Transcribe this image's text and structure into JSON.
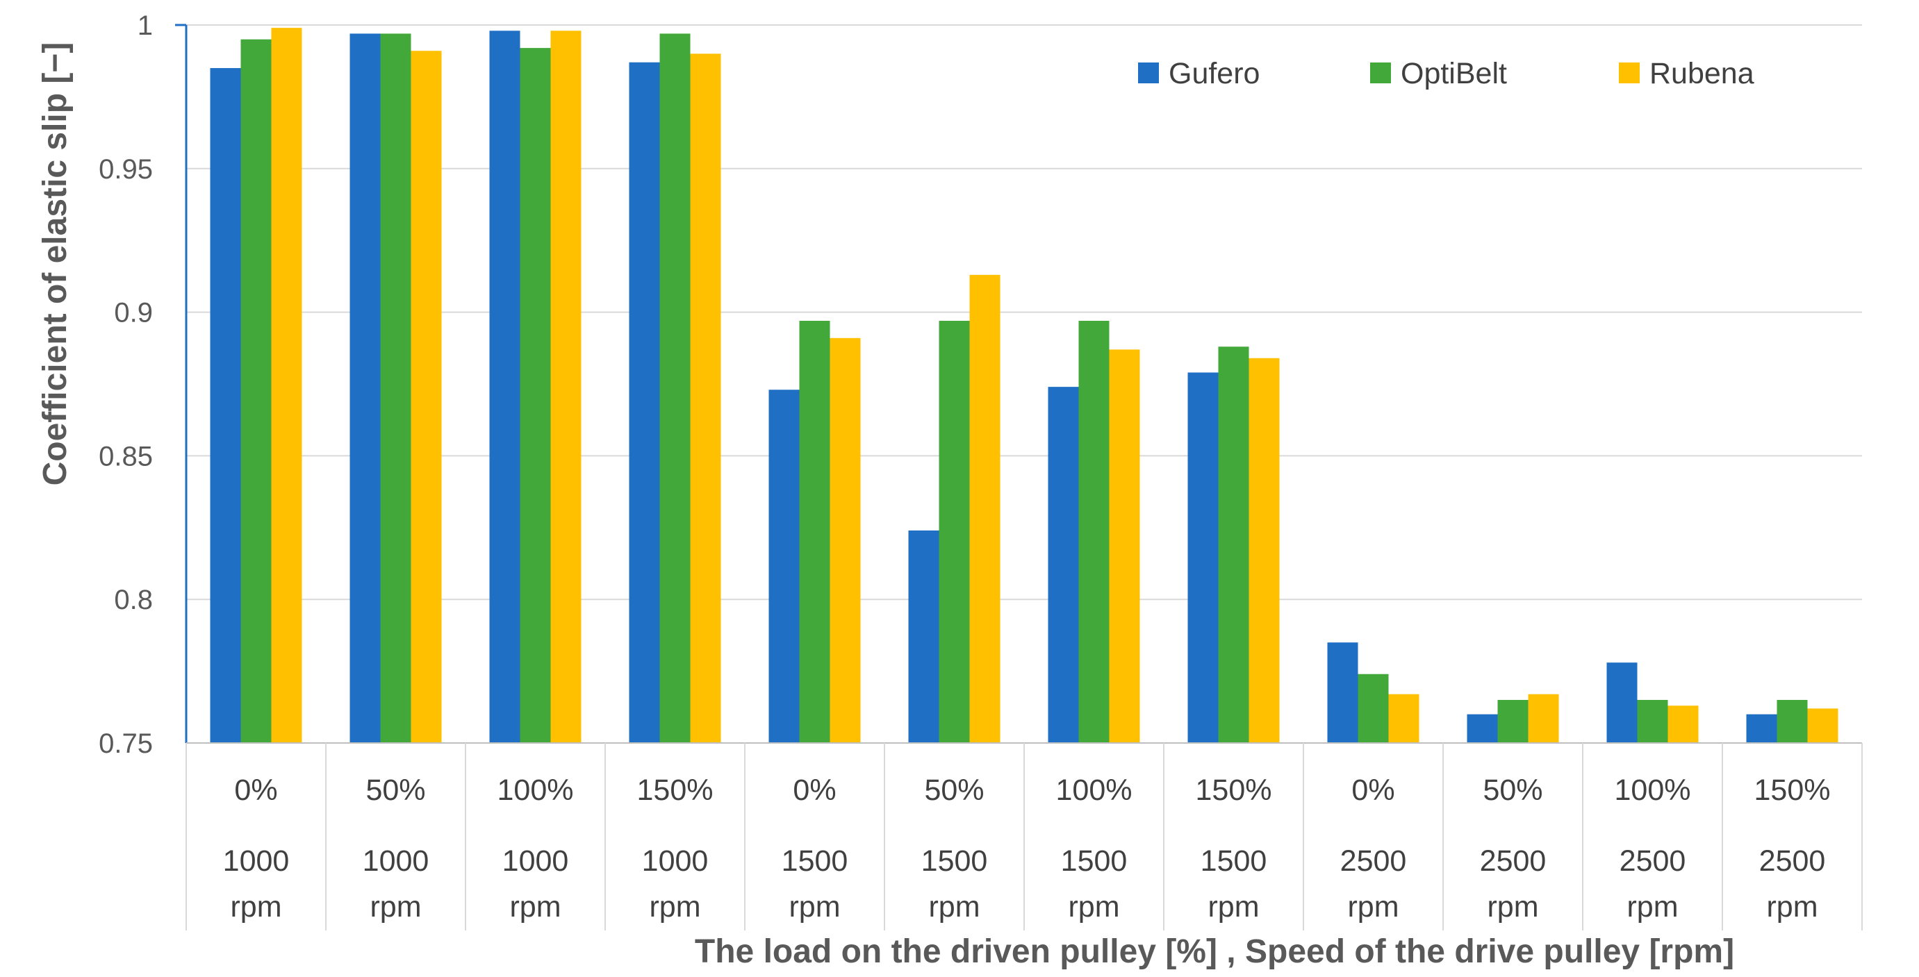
{
  "chart_data": {
    "type": "bar",
    "categories": [
      {
        "load": "0%",
        "speed": "1000",
        "unit": "rpm"
      },
      {
        "load": "50%",
        "speed": "1000",
        "unit": "rpm"
      },
      {
        "load": "100%",
        "speed": "1000",
        "unit": "rpm"
      },
      {
        "load": "150%",
        "speed": "1000",
        "unit": "rpm"
      },
      {
        "load": "0%",
        "speed": "1500",
        "unit": "rpm"
      },
      {
        "load": "50%",
        "speed": "1500",
        "unit": "rpm"
      },
      {
        "load": "100%",
        "speed": "1500",
        "unit": "rpm"
      },
      {
        "load": "150%",
        "speed": "1500",
        "unit": "rpm"
      },
      {
        "load": "0%",
        "speed": "2500",
        "unit": "rpm"
      },
      {
        "load": "50%",
        "speed": "2500",
        "unit": "rpm"
      },
      {
        "load": "100%",
        "speed": "2500",
        "unit": "rpm"
      },
      {
        "load": "150%",
        "speed": "2500",
        "unit": "rpm"
      }
    ],
    "series": [
      {
        "name": "Gufero",
        "color": "#1f6fc5",
        "values": [
          0.985,
          0.997,
          0.998,
          0.987,
          0.873,
          0.824,
          0.874,
          0.879,
          0.785,
          0.76,
          0.778,
          0.76
        ]
      },
      {
        "name": "OptiBelt",
        "color": "#43a83a",
        "values": [
          0.995,
          0.997,
          0.992,
          0.997,
          0.897,
          0.897,
          0.897,
          0.888,
          0.774,
          0.765,
          0.765,
          0.765
        ]
      },
      {
        "name": "Rubena",
        "color": "#ffc000",
        "values": [
          0.999,
          0.991,
          0.998,
          0.99,
          0.891,
          0.913,
          0.887,
          0.884,
          0.767,
          0.767,
          0.763,
          0.762
        ]
      }
    ],
    "title": "",
    "xlabel": "The load on the driven pulley [%] , Speed of the drive pulley [rpm]",
    "ylabel": "Coefficient of elastic slip  [−]",
    "ylim": [
      0.75,
      1.0
    ],
    "yticks": [
      {
        "value": 0.75,
        "label": "0.75"
      },
      {
        "value": 0.8,
        "label": "0.8"
      },
      {
        "value": 0.85,
        "label": "0.85"
      },
      {
        "value": 0.9,
        "label": "0.9"
      },
      {
        "value": 0.95,
        "label": "0.95"
      },
      {
        "value": 1.0,
        "label": "1"
      }
    ],
    "grid": true,
    "legend_position": "top-right"
  }
}
